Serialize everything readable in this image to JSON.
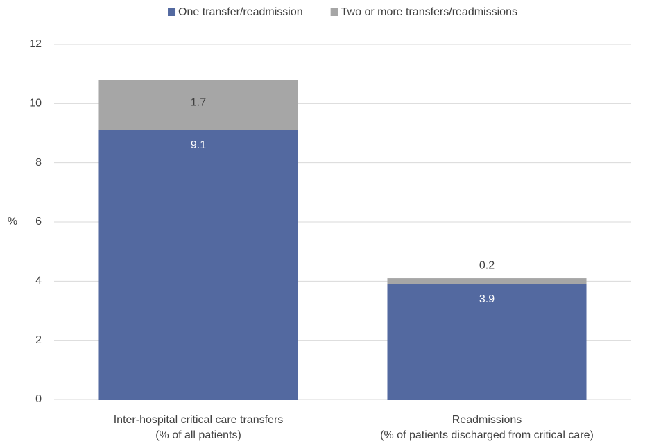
{
  "chart_data": {
    "type": "stacked_bar",
    "y_label": "%",
    "categories": [
      [
        "Inter-hospital critical care transfers",
        "(% of all patients)"
      ],
      [
        "Readmissions",
        "(% of patients discharged from critical care)"
      ]
    ],
    "series": [
      {
        "name": "One transfer/readmission",
        "color": "#5369a0",
        "values": [
          9.1,
          3.9
        ]
      },
      {
        "name": "Two or more transfers/readmissions",
        "color": "#a6a6a6",
        "values": [
          1.7,
          0.2
        ]
      }
    ],
    "ylim": [
      0,
      12
    ],
    "yticks": [
      0,
      2,
      4,
      6,
      8,
      10,
      12
    ],
    "grid": true,
    "legend": "top"
  }
}
